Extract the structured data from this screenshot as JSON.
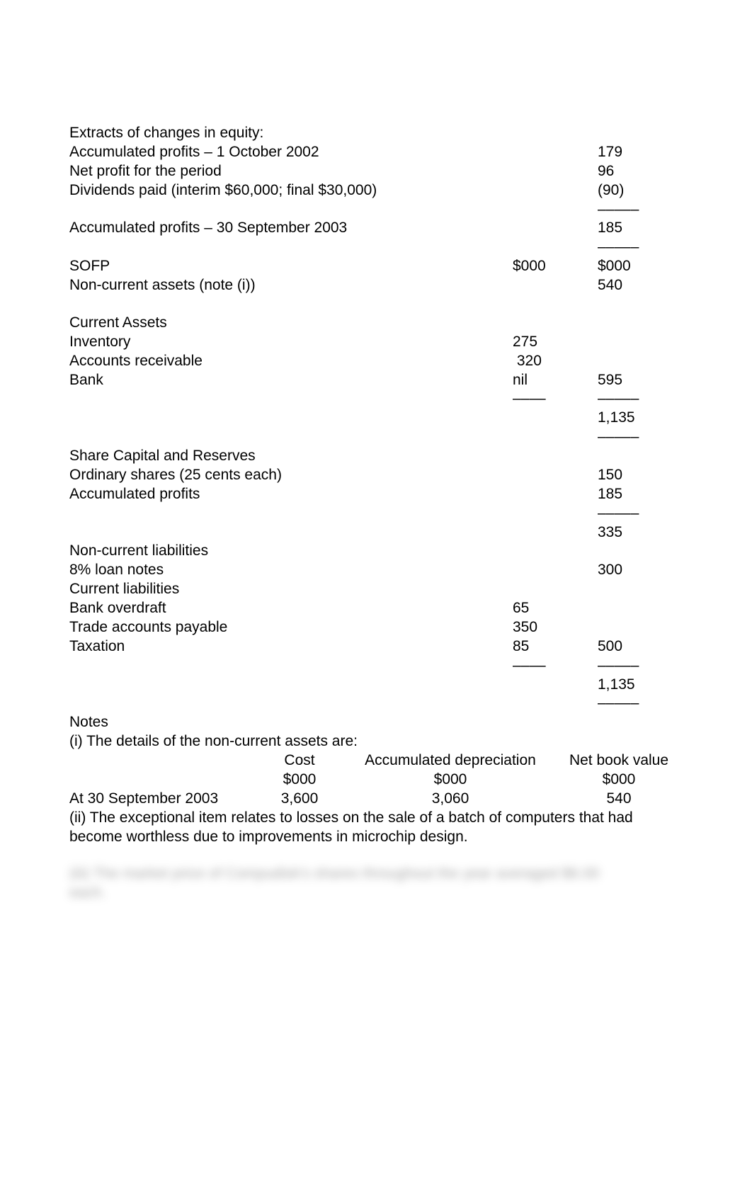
{
  "equity": {
    "heading": "Extracts of changes in equity:",
    "rows": [
      {
        "label": "Accumulated profits – 1 October 2002",
        "v2": "179"
      },
      {
        "label": "Net profit for the period",
        "v2": "96"
      },
      {
        "label": "Dividends paid (interim $60,000; final $30,000)",
        "v2": "(90)"
      }
    ],
    "rule2_a": "–––––",
    "closing": {
      "label": "Accumulated profits – 30 September 2003",
      "v2": "185"
    },
    "rule2_b": "–––––"
  },
  "sofp": {
    "head": {
      "label": "SOFP",
      "v1": "$000",
      "v2": "$000"
    },
    "nca": {
      "label": "Non-current assets (note (i))",
      "v2": "540"
    }
  },
  "ca": {
    "heading": "Current Assets",
    "rows": [
      {
        "label": "Inventory",
        "v1": "275"
      },
      {
        "label": "Accounts receivable",
        "v1": " 320"
      },
      {
        "label": "Bank",
        "v1": "nil",
        "v2": "595"
      }
    ],
    "rule1": "––––",
    "rule2": "–––––",
    "total": {
      "v2": "1,135"
    },
    "rule2b": "–––––"
  },
  "scr": {
    "heading": "Share Capital and Reserves",
    "rows": [
      {
        "label": "Ordinary shares (25 cents each)",
        "v2": "150"
      },
      {
        "label": "Accumulated profits",
        "v2": "185"
      }
    ],
    "rule2": "–––––",
    "subtotal": {
      "v2": "335"
    }
  },
  "liab": {
    "ncl_heading": "Non-current liabilities",
    "loan": {
      "label": "8% loan notes",
      "v2": "300"
    },
    "cl_heading": "Current liabilities",
    "rows": [
      {
        "label": "Bank overdraft",
        "v1": "65"
      },
      {
        "label": "Trade accounts payable",
        "v1": "350"
      },
      {
        "label": "Taxation",
        "v1": "85",
        "v2": "500"
      }
    ],
    "rule1": "––––",
    "rule2": "–––––",
    "total": {
      "v2": "1,135"
    },
    "rule2b": "–––––"
  },
  "notes": {
    "heading": "Notes",
    "i_intro": "(i) The details of the non-current assets are:",
    "table": {
      "head": {
        "cost": "Cost",
        "dep": "Accumulated depreciation",
        "nbv": "Net book value"
      },
      "units": {
        "cost": "$000",
        "dep": "$000",
        "nbv": "$000"
      },
      "row": {
        "left": "At 30 September 2003",
        "cost": "3,600",
        "dep": "3,060",
        "nbv": "540"
      }
    },
    "ii": "(ii) The exceptional item relates to losses on the sale of a batch of computers that had become worthless due to improvements in microchip design.",
    "blur1": "(iii) The market price of Compudisk's shares throughout the year averaged $6.00",
    "blur2": "each."
  }
}
